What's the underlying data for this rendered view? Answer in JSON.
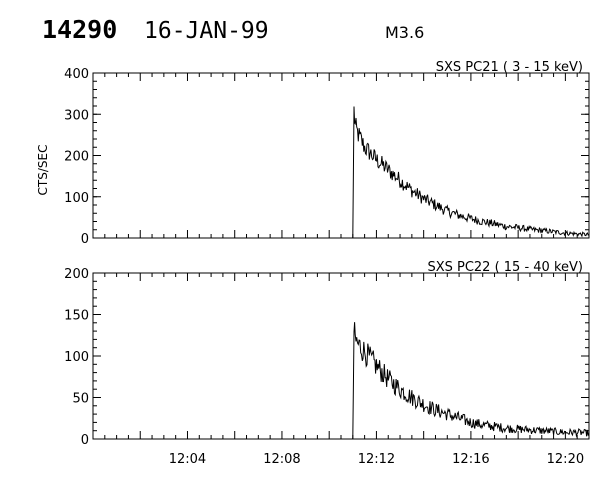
{
  "header": {
    "event_id": "14290",
    "date": "16-JAN-99",
    "flare_class": "M3.6"
  },
  "colors": {
    "ink": "#000000",
    "background": "#ffffff"
  },
  "chart_data": [
    {
      "type": "line",
      "title": "SXS PC21  (  3 - 15 keV)",
      "ylabel": "CTS/SEC",
      "xlabel": "",
      "xlim": [
        "12:00",
        "12:21"
      ],
      "ylim": [
        0,
        400
      ],
      "yticks": [
        0,
        100,
        200,
        300,
        400
      ],
      "xticks": [],
      "grid": false,
      "series": [
        {
          "x": [
            "12:00",
            "12:01",
            "12:02",
            "12:03",
            "12:04",
            "12:05",
            "12:06",
            "12:07",
            "12:08",
            "12:09",
            "12:10",
            "12:10.5",
            "12:10.9",
            "12:11.0",
            "12:11.05",
            "12:11.1",
            "12:11.2",
            "12:11.5",
            "12:12",
            "12:12.5",
            "12:13",
            "12:13.5",
            "12:14",
            "12:14.5",
            "12:15",
            "12:15.5",
            "12:16",
            "12:16.5",
            "12:17",
            "12:17.5",
            "12:18",
            "12:18.5",
            "12:19",
            "12:19.5",
            "12:20",
            "12:20.5",
            "12:21"
          ],
          "values": [
            null,
            null,
            null,
            null,
            null,
            null,
            null,
            null,
            null,
            null,
            null,
            null,
            null,
            0,
            310,
            270,
            255,
            220,
            190,
            165,
            140,
            115,
            95,
            80,
            65,
            55,
            47,
            40,
            34,
            28,
            25,
            21,
            18,
            15,
            12,
            10,
            8
          ]
        }
      ]
    },
    {
      "type": "line",
      "title": "SXS PC22  ( 15 - 40 keV)",
      "ylabel": "",
      "xlabel": "",
      "xlim": [
        "12:00",
        "12:21"
      ],
      "ylim": [
        0,
        200
      ],
      "yticks": [
        0,
        50,
        100,
        150,
        200
      ],
      "xticks": [
        "12:04",
        "12:08",
        "12:12",
        "12:16",
        "12:20"
      ],
      "grid": false,
      "series": [
        {
          "x": [
            "12:00",
            "12:01",
            "12:02",
            "12:03",
            "12:04",
            "12:05",
            "12:06",
            "12:07",
            "12:08",
            "12:09",
            "12:10",
            "12:10.5",
            "12:10.9",
            "12:11.0",
            "12:11.05",
            "12:11.1",
            "12:11.2",
            "12:11.5",
            "12:12",
            "12:12.5",
            "12:13",
            "12:13.5",
            "12:14",
            "12:14.5",
            "12:15",
            "12:15.5",
            "12:16",
            "12:16.5",
            "12:17",
            "12:17.5",
            "12:18",
            "12:18.5",
            "12:19",
            "12:19.5",
            "12:20",
            "12:20.5",
            "12:21"
          ],
          "values": [
            null,
            null,
            null,
            null,
            null,
            null,
            null,
            null,
            null,
            null,
            null,
            null,
            null,
            0,
            130,
            120,
            115,
            105,
            88,
            72,
            60,
            50,
            42,
            35,
            30,
            25,
            20,
            17,
            15,
            13,
            12,
            11,
            10,
            9,
            8,
            8,
            7
          ]
        }
      ]
    }
  ]
}
